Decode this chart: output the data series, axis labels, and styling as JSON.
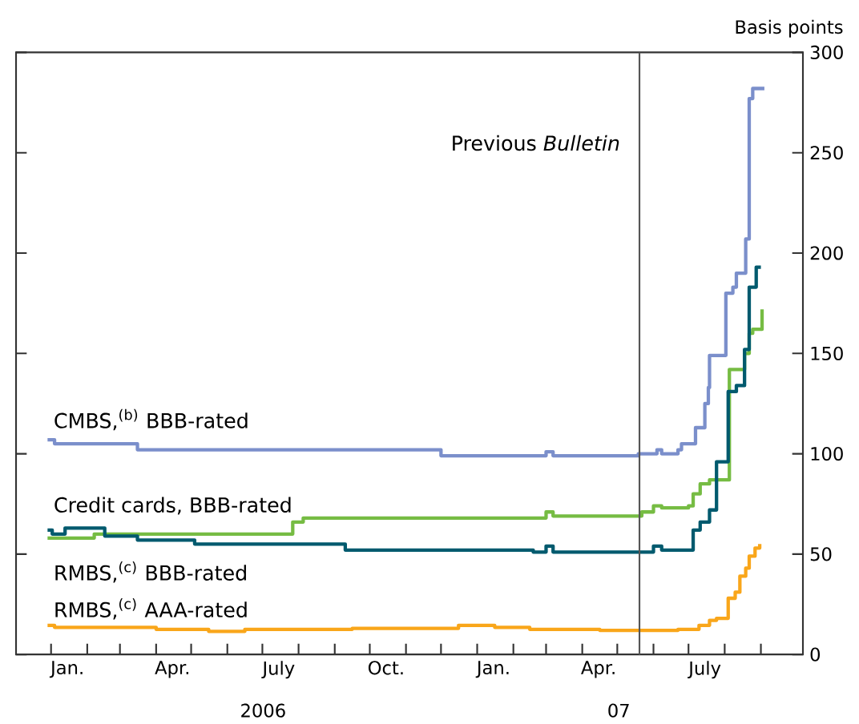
{
  "chart_data": {
    "type": "step",
    "ylabel": "Basis points",
    "xlim": [
      "2005-12-02",
      "2007-10-07"
    ],
    "ylim": [
      0,
      300
    ],
    "yticks": [
      0,
      50,
      100,
      150,
      200,
      250,
      300
    ],
    "xticks": [
      {
        "value": "2006-01-01",
        "label": null
      },
      {
        "value": "2006-02-01",
        "label": null
      },
      {
        "value": "2006-03-01",
        "label": null
      },
      {
        "value": "2006-04-01",
        "label": null
      },
      {
        "value": "2006-05-01",
        "label": null
      },
      {
        "value": "2006-06-01",
        "label": null
      },
      {
        "value": "2006-07-01",
        "label": null
      },
      {
        "value": "2006-08-01",
        "label": null
      },
      {
        "value": "2006-09-01",
        "label": null
      },
      {
        "value": "2006-10-01",
        "label": null
      },
      {
        "value": "2006-11-01",
        "label": null
      },
      {
        "value": "2006-12-01",
        "label": null
      },
      {
        "value": "2007-01-01",
        "label": null
      },
      {
        "value": "2007-02-01",
        "label": null
      },
      {
        "value": "2007-03-01",
        "label": null
      },
      {
        "value": "2007-04-01",
        "label": null
      },
      {
        "value": "2007-05-01",
        "label": null
      },
      {
        "value": "2007-06-01",
        "label": null
      },
      {
        "value": "2007-07-01",
        "label": null
      },
      {
        "value": "2007-08-01",
        "label": null
      },
      {
        "value": "2007-09-01",
        "label": null
      },
      {
        "value": "2006-01-15",
        "label": "Jan."
      },
      {
        "value": "2006-04-15",
        "label": "Apr."
      },
      {
        "value": "2006-07-15",
        "label": "July"
      },
      {
        "value": "2006-10-15",
        "label": "Oct."
      },
      {
        "value": "2007-01-15",
        "label": "Jan."
      },
      {
        "value": "2007-04-15",
        "label": "Apr."
      },
      {
        "value": "2007-07-15",
        "label": "July"
      }
    ],
    "annotations": [
      "2006",
      "07"
    ],
    "marker": "none",
    "line_style": "solid",
    "series": [
      {
        "name": "CMBS,$^{(b)}$ BBB-rated",
        "color": "#7b8fcb",
        "x": [
          "2005-12-29",
          "2006-01-04",
          "2006-03-16",
          "2006-12-01",
          "2007-03-01",
          "2007-03-07",
          "2007-05-19",
          "2007-06-04",
          "2007-06-08",
          "2007-06-22",
          "2007-06-25",
          "2007-07-07",
          "2007-07-15",
          "2007-07-18",
          "2007-07-19",
          "2007-08-02",
          "2007-08-08",
          "2007-08-11",
          "2007-08-19",
          "2007-08-22",
          "2007-08-25",
          "2007-09-04"
        ],
        "values": [
          107,
          105,
          102,
          99,
          101,
          99,
          100,
          102,
          100,
          102,
          105,
          113,
          125,
          133,
          149,
          180,
          183,
          190,
          207,
          277,
          282,
          282
        ]
      },
      {
        "name": "Credit cards, BBB-rated",
        "color": "#76bc43",
        "x": [
          "2005-12-29",
          "2006-02-07",
          "2006-07-27",
          "2006-08-05",
          "2007-03-01",
          "2007-03-07",
          "2007-05-22",
          "2007-06-01",
          "2007-06-08",
          "2007-07-01",
          "2007-07-05",
          "2007-07-11",
          "2007-07-19",
          "2007-08-05",
          "2007-08-18",
          "2007-08-22",
          "2007-08-25",
          "2007-09-02"
        ],
        "values": [
          58,
          60,
          66,
          68,
          71,
          69,
          71,
          74,
          73,
          74,
          80,
          85,
          87,
          142,
          150,
          160,
          162,
          172
        ]
      },
      {
        "name": "RMBS,$^{(c)}$ BBB-rated",
        "color": "#005a6e",
        "x": [
          "2005-12-29",
          "2006-01-02",
          "2006-01-13",
          "2006-02-16",
          "2006-03-16",
          "2006-05-04",
          "2006-09-10",
          "2007-02-18",
          "2007-03-01",
          "2007-03-07",
          "2007-05-22",
          "2007-06-01",
          "2007-06-08",
          "2007-07-05",
          "2007-07-11",
          "2007-07-19",
          "2007-07-25",
          "2007-08-04",
          "2007-08-11",
          "2007-08-18",
          "2007-08-22",
          "2007-08-28",
          "2007-09-01"
        ],
        "values": [
          62,
          60,
          63,
          59,
          57,
          55,
          52,
          51,
          54,
          51,
          51,
          54,
          52,
          62,
          66,
          72,
          96,
          131,
          134,
          152,
          183,
          193,
          193
        ]
      },
      {
        "name": "RMBS,$^{(c)}$ AAA-rated",
        "color": "#f9a61a",
        "x": [
          "2005-12-29",
          "2006-01-04",
          "2006-04-01",
          "2006-05-16",
          "2006-06-16",
          "2006-09-16",
          "2006-12-16",
          "2007-01-16",
          "2007-02-15",
          "2007-04-16",
          "2007-06-22",
          "2007-07-10",
          "2007-07-19",
          "2007-07-25",
          "2007-08-04",
          "2007-08-10",
          "2007-08-14",
          "2007-08-19",
          "2007-08-22",
          "2007-08-27",
          "2007-08-31"
        ],
        "values": [
          14.5,
          13.5,
          12.5,
          11.5,
          12.5,
          13,
          14.5,
          13.5,
          12.5,
          12,
          12.5,
          14.5,
          17,
          18,
          28,
          31,
          39,
          43,
          49,
          53,
          55
        ]
      }
    ],
    "ref_lines": [
      {
        "axis": "x",
        "value": "2007-05-20",
        "label": "Previous *Bulletin*",
        "color": "#555555"
      }
    ]
  }
}
